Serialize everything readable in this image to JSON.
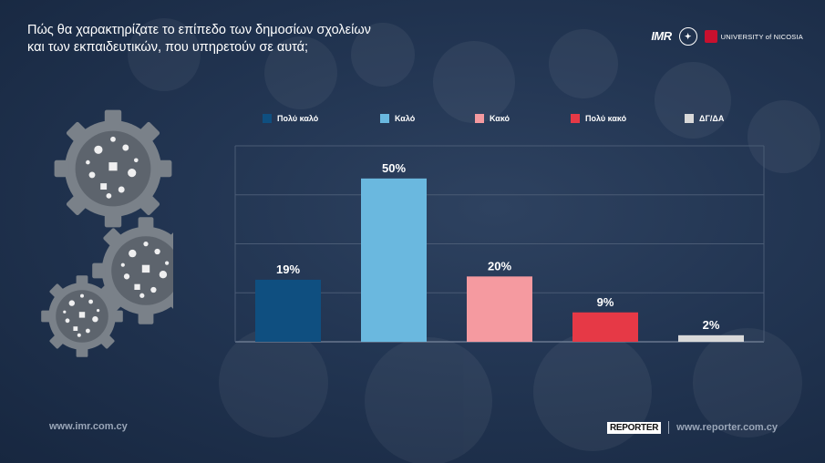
{
  "title_line1": "Πώς θα χαρακτηρίζατε το επίπεδο των δημοσίων σχολείων",
  "title_line2": "και των εκπαιδευτικών, που υπηρετούν σε αυτά;",
  "logos": {
    "imr": "IMR",
    "university": "UNIVERSITY of NICOSIA"
  },
  "footer": {
    "left_url": "www.imr.com.cy",
    "reporter": "REPORTER",
    "right_url": "www.reporter.com.cy"
  },
  "colors": {
    "very_good": "#0f4f80",
    "good": "#6ab8df",
    "bad": "#f59aa0",
    "very_bad": "#e63946",
    "dk": "#d9d9d9"
  },
  "chart_data": {
    "type": "bar",
    "categories": [
      "Πολύ καλό",
      "Καλό",
      "Κακό",
      "Πολύ κακό",
      "ΔΓ/ΔΑ"
    ],
    "values": [
      19,
      50,
      20,
      9,
      2
    ],
    "labels": [
      "19%",
      "50%",
      "20%",
      "9%",
      "2%"
    ],
    "colors": [
      "#0f4f80",
      "#6ab8df",
      "#f59aa0",
      "#e63946",
      "#d9d9d9"
    ],
    "ylim": [
      0,
      60
    ],
    "grid": true,
    "legend": "top"
  }
}
